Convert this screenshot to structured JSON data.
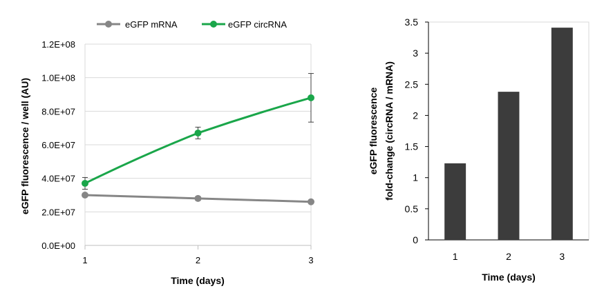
{
  "colors": {
    "mrna": "#868686",
    "circrna": "#1aa64a",
    "bar": "#3c3c3c",
    "grid": "#d9d9d9",
    "axis": "#808080",
    "errorbar": "#404040"
  },
  "chart_data": [
    {
      "type": "line",
      "title": "",
      "xlabel": "Time (days)",
      "ylabel": "eGFP fluorescence / well (AU)",
      "x": [
        1,
        2,
        3
      ],
      "x_tick_labels": [
        "1",
        "2",
        "3"
      ],
      "ylim": [
        0,
        120000000
      ],
      "y_ticks": [
        0,
        20000000,
        40000000,
        60000000,
        80000000,
        100000000,
        120000000
      ],
      "y_tick_labels": [
        "0.0E+00",
        "2.0E+07",
        "4.0E+07",
        "6.0E+07",
        "8.0E+07",
        "1.0E+08",
        "1.2E+08"
      ],
      "grid": "horizontal",
      "legend": "top",
      "series": [
        {
          "name": "eGFP mRNA",
          "values": [
            30000000,
            28000000,
            26000000
          ],
          "errors": [
            800000,
            1200000,
            800000
          ]
        },
        {
          "name": "eGFP circRNA",
          "values": [
            37000000,
            67000000,
            88000000
          ],
          "errors": [
            3500000,
            3500000,
            14500000
          ]
        }
      ]
    },
    {
      "type": "bar",
      "title": "",
      "xlabel": "Time (days)",
      "ylabel_lines": [
        "eGFP fluorescence",
        "fold-change (circRNA / mRNA)"
      ],
      "categories": [
        "1",
        "2",
        "3"
      ],
      "values": [
        1.23,
        2.38,
        3.41
      ],
      "ylim": [
        0,
        3.5
      ],
      "y_ticks": [
        0,
        0.5,
        1,
        1.5,
        2,
        2.5,
        3,
        3.5
      ],
      "y_tick_labels": [
        "0",
        "0.5",
        "1",
        "1.5",
        "2",
        "2.5",
        "3",
        "3.5"
      ],
      "grid": "none"
    }
  ]
}
